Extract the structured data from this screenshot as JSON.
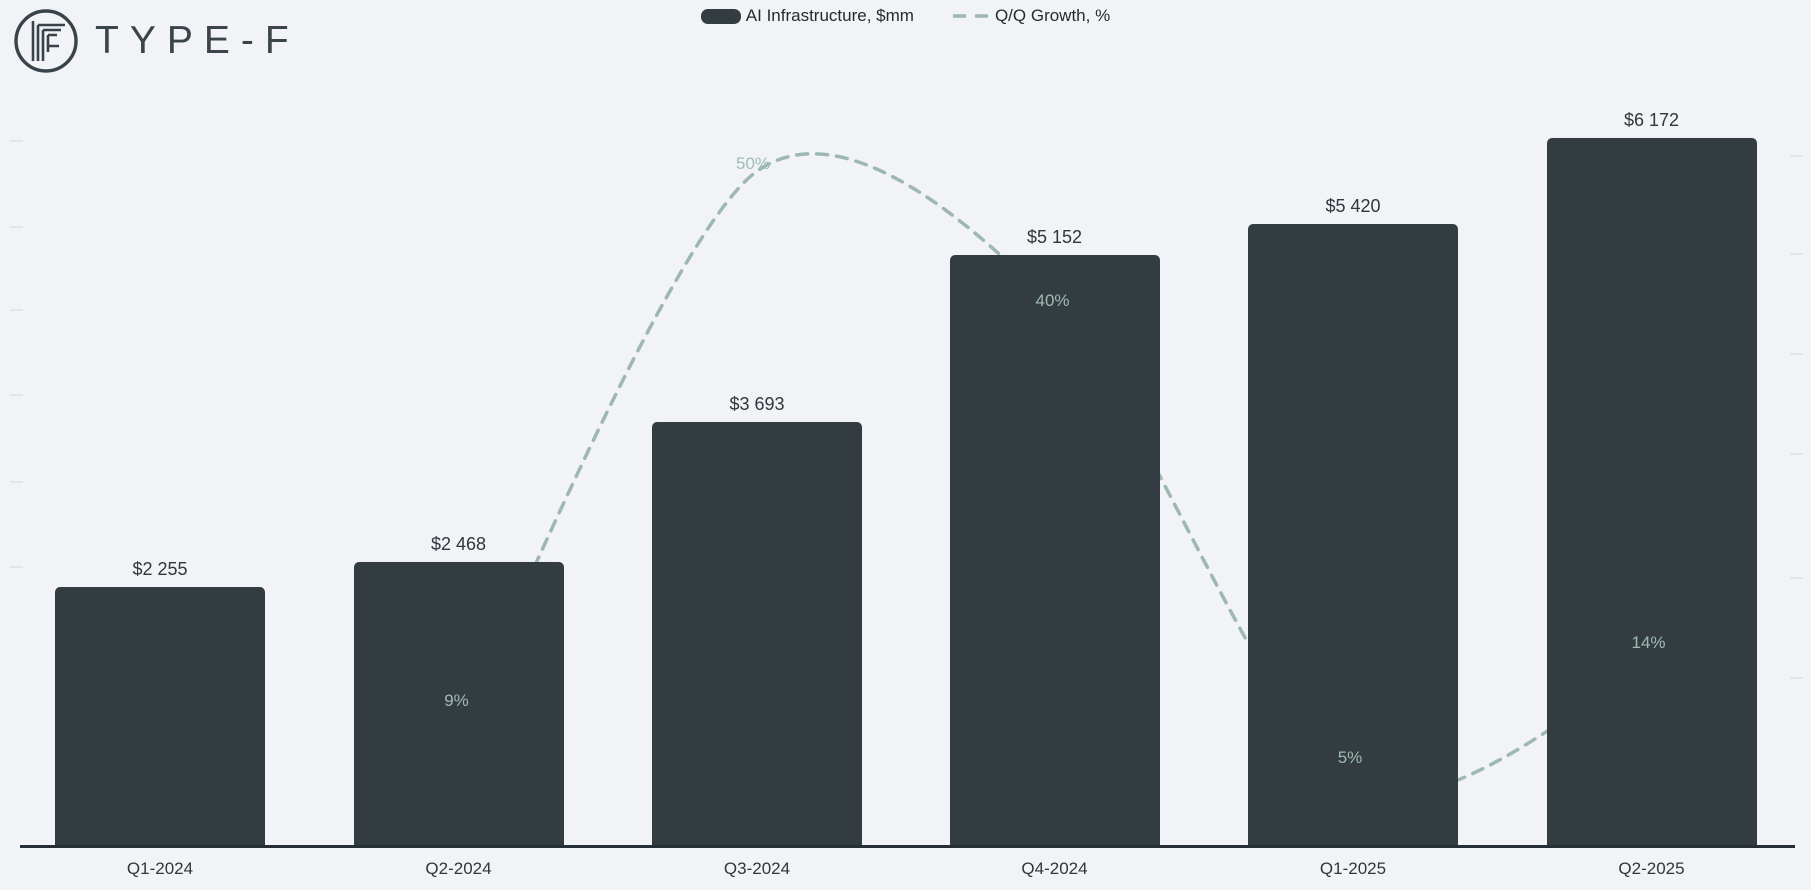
{
  "brand": {
    "name": "TYPE-F"
  },
  "legend": [
    {
      "label": "AI Infrastructure, $mm",
      "type": "bar"
    },
    {
      "label": "Q/Q Growth, %",
      "type": "line"
    }
  ],
  "chart_data": {
    "type": "bar+line",
    "title": "",
    "categories": [
      "Q1-2024",
      "Q2-2024",
      "Q3-2024",
      "Q4-2024",
      "Q1-2025",
      "Q2-2025"
    ],
    "series": [
      {
        "name": "AI Infrastructure, $mm",
        "type": "bar",
        "values": [
          2255,
          2468,
          3693,
          5152,
          5420,
          6172
        ],
        "labels": [
          "$2 255",
          "$2 468",
          "$3 693",
          "$5 152",
          "$5 420",
          "$6 172"
        ]
      },
      {
        "name": "Q/Q Growth, %",
        "type": "line",
        "style": "dashed",
        "values": [
          null,
          9,
          50,
          40,
          5,
          14
        ],
        "labels": [
          null,
          "9%",
          "50%",
          "40%",
          "5%",
          "14%"
        ]
      }
    ],
    "ylim": [
      0,
      6500
    ],
    "grid": false,
    "legend_position": "top-center",
    "colors": {
      "background": "#f2f3f6",
      "bar": "#333c41",
      "line": "#9db8b0",
      "axis": "#262f35",
      "value_text": "#2e373d",
      "growth_text": "#9fbcb3"
    }
  }
}
